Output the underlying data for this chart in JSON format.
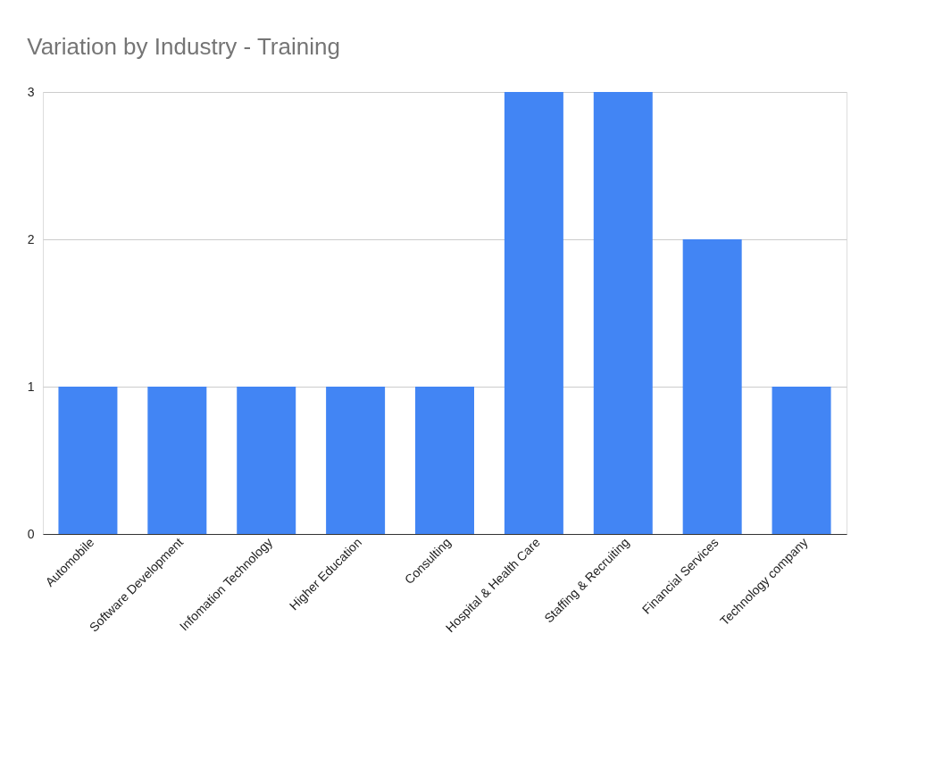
{
  "chart_data": {
    "type": "bar",
    "title": "Variation by Industry - Training",
    "categories": [
      "Automobile",
      "Software Development",
      "Infomation Technology",
      "Higher Education",
      "Consulting",
      "Hospital & Health Care",
      "Staffing & Recruiting",
      "Financial Services",
      "Technology company"
    ],
    "values": [
      1,
      1,
      1,
      1,
      1,
      3,
      3,
      2,
      1
    ],
    "color": "#4285f4",
    "ylim": [
      0,
      3
    ],
    "yticks": [
      0,
      1,
      2,
      3
    ],
    "grid": "y"
  }
}
